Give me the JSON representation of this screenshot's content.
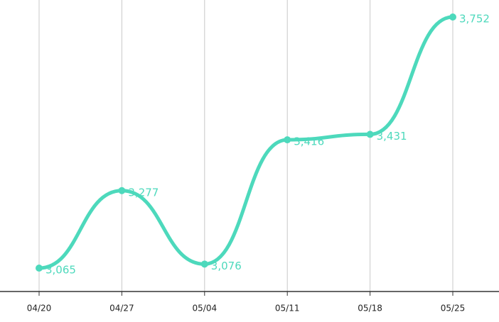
{
  "chart_data": {
    "type": "line",
    "categories": [
      "04/20",
      "04/27",
      "05/04",
      "05/11",
      "05/18",
      "05/25"
    ],
    "values": [
      3065,
      3277,
      3076,
      3416,
      3431,
      3752
    ],
    "value_labels": [
      "3,065",
      "3,277",
      "3,076",
      "3,416",
      "3,431",
      "3,752"
    ],
    "color": "#4dd9bc",
    "smooth": true,
    "grid": true
  }
}
